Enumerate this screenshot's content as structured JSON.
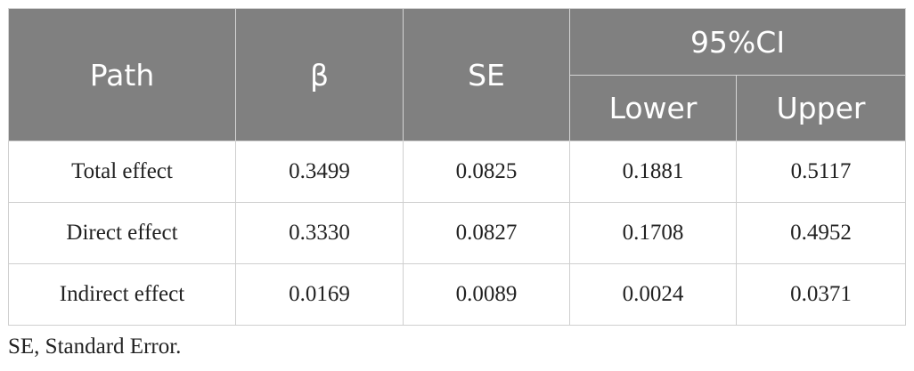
{
  "table": {
    "headers": {
      "path": "Path",
      "beta": "β",
      "se": "SE",
      "ci": "95%CI",
      "lower": "Lower",
      "upper": "Upper"
    },
    "rows": [
      {
        "path": "Total effect",
        "beta": "0.3499",
        "se": "0.0825",
        "lower": "0.1881",
        "upper": "0.5117"
      },
      {
        "path": "Direct effect",
        "beta": "0.3330",
        "se": "0.0827",
        "lower": "0.1708",
        "upper": "0.4952"
      },
      {
        "path": "Indirect effect",
        "beta": "0.0169",
        "se": "0.0089",
        "lower": "0.0024",
        "upper": "0.0371"
      }
    ]
  },
  "footnote": "SE, Standard Error.",
  "colors": {
    "header_bg": "#808080",
    "header_text": "#ffffff",
    "border": "#cfcfcf"
  }
}
